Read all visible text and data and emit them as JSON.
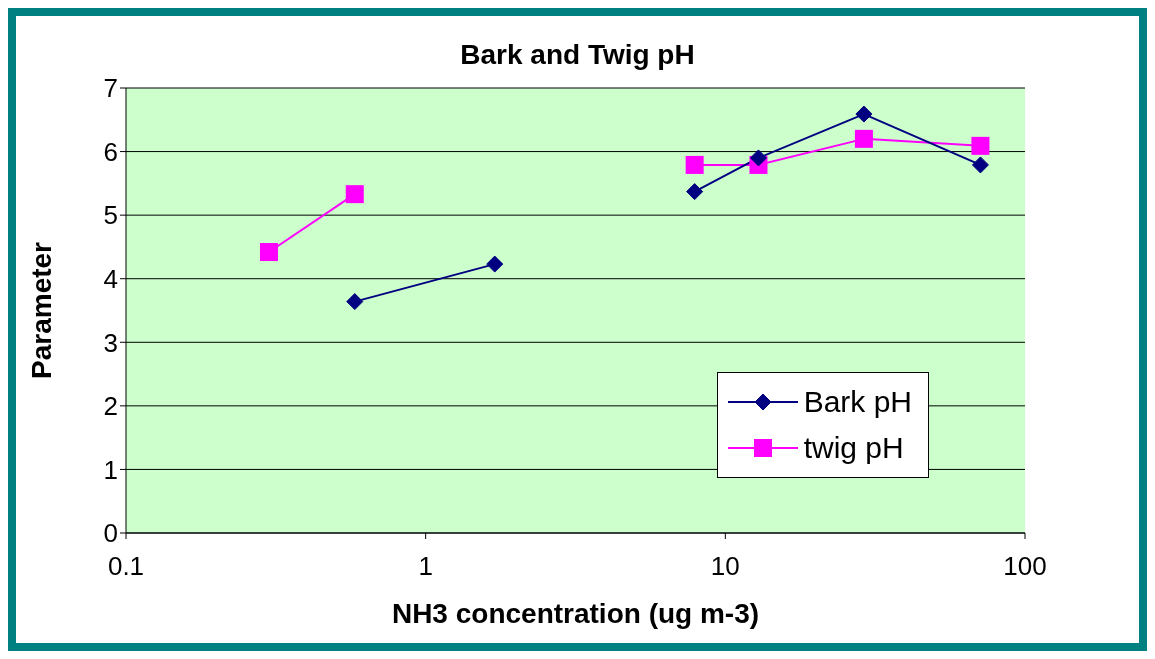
{
  "chart_data": {
    "type": "line",
    "title": "Bark and Twig pH",
    "xlabel": "NH3 concentration (ug m-3)",
    "ylabel": "Parameter",
    "x": [
      0.3,
      0.58,
      1.7,
      4,
      7.9,
      12.9,
      29,
      71
    ],
    "series": [
      {
        "name": "Bark pH",
        "color": "#000080",
        "marker": "diamond",
        "values": [
          null,
          3.64,
          4.23,
          null,
          5.37,
          5.9,
          6.59,
          5.79
        ]
      },
      {
        "name": "twig pH",
        "color": "#ff00ff",
        "marker": "square",
        "values": [
          4.42,
          5.33,
          null,
          null,
          5.79,
          5.79,
          6.2,
          6.09
        ]
      }
    ],
    "log": "x",
    "xlim": [
      0.1,
      100
    ],
    "xticks": [
      0.1,
      1,
      10,
      100
    ],
    "ylim": [
      0,
      7
    ],
    "yticks": [
      0,
      1,
      2,
      3,
      4,
      5,
      6,
      7
    ],
    "grid": "y",
    "legend": "bottom right",
    "line_style": "solid"
  }
}
